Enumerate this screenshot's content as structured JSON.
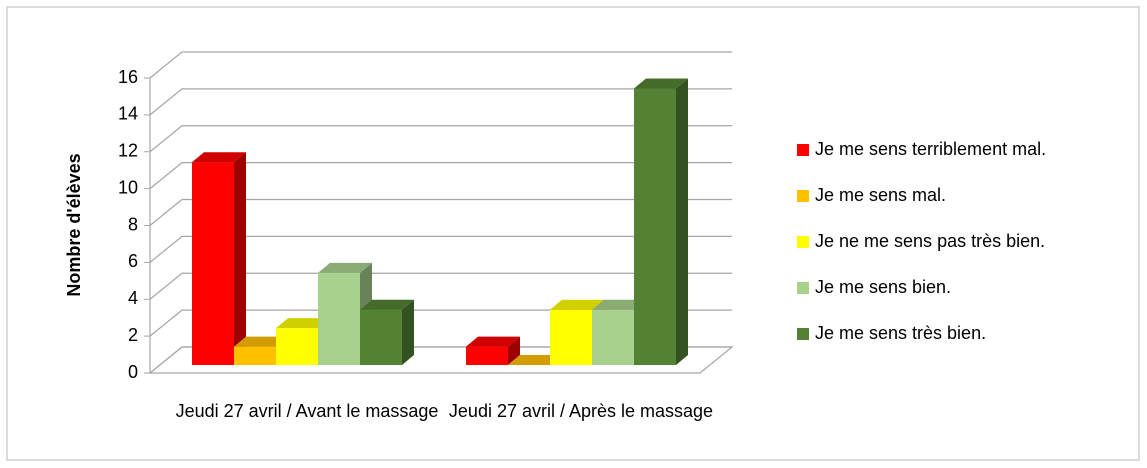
{
  "chart_data": {
    "type": "bar3d",
    "y_label": "Nombre d'élèves",
    "categories": [
      "Jeudi 27 avril / Avant le massage",
      "Jeudi 27 avril / Après le massage"
    ],
    "series": [
      {
        "name": "Je me sens terriblement mal.",
        "color": "#ff0000",
        "values": [
          11,
          1
        ]
      },
      {
        "name": "Je me sens mal.",
        "color": "#ffc000",
        "values": [
          1,
          0
        ]
      },
      {
        "name": "Je ne me sens pas très bien.",
        "color": "#ffff00",
        "values": [
          2,
          3
        ]
      },
      {
        "name": "Je me sens bien.",
        "color": "#a9d18e",
        "values": [
          5,
          3
        ]
      },
      {
        "name": "Je me sens très bien.",
        "color": "#548235",
        "values": [
          3,
          15
        ]
      }
    ],
    "ylim": [
      0,
      16
    ],
    "yticks": [
      0,
      2,
      4,
      6,
      8,
      10,
      12,
      14,
      16
    ],
    "grid": true,
    "legend": "right"
  }
}
